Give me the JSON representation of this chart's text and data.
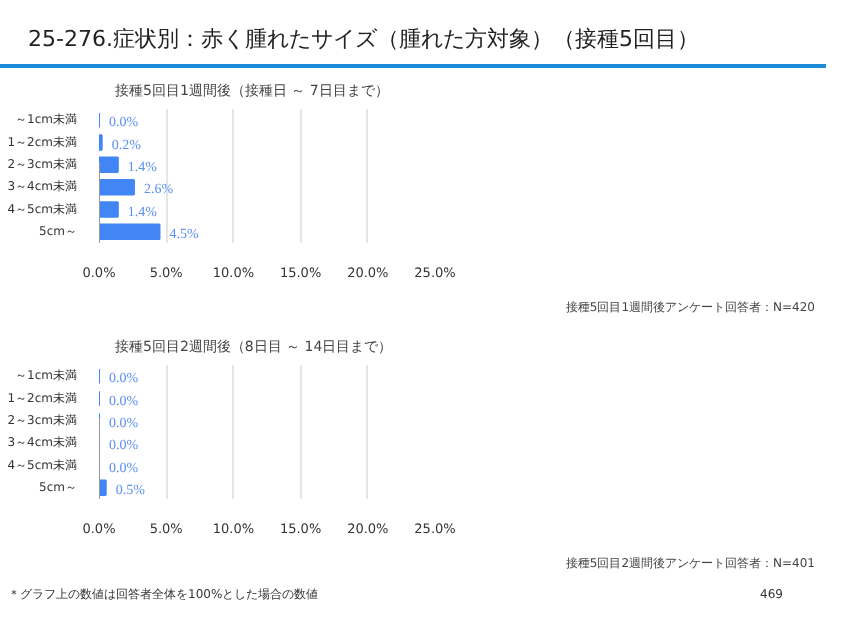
{
  "chart_data": [
    {
      "type": "bar",
      "orientation": "horizontal",
      "title": "25-276.症状別：赤く腫れたサイズ（腫れた方対象）（接種5回目）",
      "subtitle": "接種5回目1週間後（接種日 ～ 7日目まで）",
      "categories": [
        "～1cm未満",
        "1～2cm未満",
        "2～3cm未満",
        "3～4cm未満",
        "4～5cm未満",
        "5cm～"
      ],
      "values": [
        0.0,
        0.2,
        1.4,
        2.6,
        1.4,
        4.5
      ],
      "value_labels": [
        "0.0%",
        "0.2%",
        "1.4%",
        "2.6%",
        "1.4%",
        "4.5%"
      ],
      "color": "#4285f4",
      "xlim": [
        0,
        25
      ],
      "xticks": [
        {
          "value": 0,
          "label": "0.0%"
        },
        {
          "value": 5,
          "label": "5.0%"
        },
        {
          "value": 10,
          "label": "10.0%"
        },
        {
          "value": 15,
          "label": "15.0%"
        },
        {
          "value": 20,
          "label": "20.0%"
        },
        {
          "value": 25,
          "label": "25.0%"
        }
      ],
      "grid": "x",
      "annotations": [
        "接種5回目1週間後アンケート回答者：N=420"
      ]
    },
    {
      "type": "bar",
      "orientation": "horizontal",
      "subtitle": "接種5回目2週間後（8日目 ～ 14日目まで）",
      "categories": [
        "～1cm未満",
        "1～2cm未満",
        "2～3cm未満",
        "3～4cm未満",
        "4～5cm未満",
        "5cm～"
      ],
      "values": [
        0.0,
        0.0,
        0.0,
        0.0,
        0.0,
        0.5
      ],
      "value_labels": [
        "0.0%",
        "0.0%",
        "0.0%",
        "0.0%",
        "0.0%",
        "0.5%"
      ],
      "color": "#4285f4",
      "xlim": [
        0,
        25
      ],
      "xticks": [
        {
          "value": 0,
          "label": "0.0%"
        },
        {
          "value": 5,
          "label": "5.0%"
        },
        {
          "value": 10,
          "label": "10.0%"
        },
        {
          "value": 15,
          "label": "15.0%"
        },
        {
          "value": 20,
          "label": "20.0%"
        },
        {
          "value": 25,
          "label": "25.0%"
        }
      ],
      "grid": "x",
      "annotations": [
        "接種5回目2週間後アンケート回答者：N=401",
        "＊グラフ上の数値は回答者全体を100%とした場合の数値",
        "469"
      ]
    }
  ]
}
